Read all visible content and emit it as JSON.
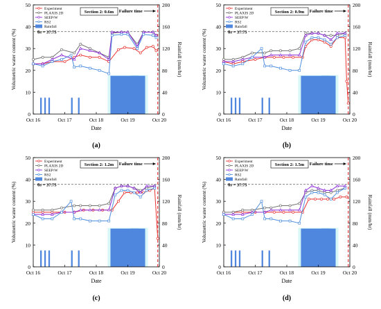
{
  "chart_data": [
    {
      "panel_label": "(a)",
      "type": "line",
      "section": "Section 2: 0.6m",
      "failure_label": "Failure time",
      "theta_label": "θs = 37.75",
      "theta_s": 37.75,
      "failure_day": 3.95,
      "xlabel": "Date",
      "ylabel": "Volumetric water content (%)",
      "ylabel2": "Rainfall (mm/hr)",
      "x_ticks": [
        "Oct 16",
        "Oct 17",
        "Oct 18",
        "Oct 19",
        "Oct 20"
      ],
      "y_ticks": [
        "0",
        "10",
        "20",
        "30",
        "40",
        "50"
      ],
      "y2_ticks": [
        "0",
        "40",
        "80",
        "120",
        "160",
        "200"
      ],
      "ylim": [
        0,
        50
      ],
      "y2lim": [
        0,
        200
      ],
      "grid": false,
      "legend": "top-left",
      "rainfall": [
        {
          "x": 0.22,
          "w": 0.05,
          "v": 30
        },
        {
          "x": 0.35,
          "w": 0.05,
          "v": 30
        },
        {
          "x": 0.48,
          "w": 0.05,
          "v": 30
        },
        {
          "x": 1.2,
          "w": 0.05,
          "v": 30
        },
        {
          "x": 1.42,
          "w": 0.05,
          "v": 30
        },
        {
          "x": 2.45,
          "w": 0.9,
          "v": 70
        },
        {
          "x": 3.1,
          "w": 0.45,
          "v": 70
        }
      ],
      "series": [
        {
          "name": "Experiment",
          "color": "#e8322f",
          "marker": "circle",
          "x": [
            0,
            0.3,
            0.6,
            1.0,
            1.3,
            1.5,
            1.8,
            2.1,
            2.4,
            2.7,
            2.9,
            3.2,
            3.4,
            3.6,
            3.8,
            3.9
          ],
          "y": [
            23,
            23,
            24,
            24,
            26,
            27,
            26,
            26,
            24,
            29.5,
            30.5,
            30,
            28,
            30.5,
            31,
            29
          ]
        },
        {
          "name": "PLAXIS 2D",
          "color": "#707070",
          "marker": "circle",
          "x": [
            0,
            0.3,
            0.6,
            0.9,
            1.3,
            1.5,
            1.8,
            2.1,
            2.4,
            2.5,
            2.8,
            3.0,
            3.3,
            3.5,
            3.8,
            3.9
          ],
          "y": [
            25,
            26,
            26,
            29.5,
            28,
            32,
            30,
            28,
            26,
            37,
            37.5,
            37.5,
            32,
            37.5,
            37.5,
            36
          ]
        },
        {
          "name": "SEEP/W",
          "color": "#8b2bd8",
          "marker": "triangle",
          "x": [
            0,
            0.3,
            0.6,
            0.9,
            1.3,
            1.5,
            1.8,
            2.1,
            2.4,
            2.5,
            2.8,
            3.0,
            3.3,
            3.5,
            3.8,
            3.9
          ],
          "y": [
            23,
            23,
            25,
            27,
            25,
            30,
            29,
            28,
            25,
            37.5,
            37.5,
            37.5,
            31,
            37.5,
            37.5,
            36
          ]
        },
        {
          "name": "RS2",
          "color": "#4f8ede",
          "marker": "square",
          "x": [
            0,
            0.3,
            0.6,
            0.9,
            1.2,
            1.3,
            1.5,
            1.8,
            2.1,
            2.4,
            2.5,
            2.8,
            3.0,
            3.3,
            3.5,
            3.8,
            3.9
          ],
          "y": [
            23,
            22,
            24,
            25,
            27,
            21.5,
            22,
            21,
            20,
            18.5,
            36,
            36.5,
            36.5,
            30,
            36.5,
            36,
            35
          ]
        }
      ]
    },
    {
      "panel_label": "(b)",
      "type": "line",
      "section": "Section 2: 0.9m",
      "failure_label": "Failure time",
      "theta_label": "θs = 37.75",
      "theta_s": 37.75,
      "failure_day": 3.95,
      "xlabel": "Date",
      "ylabel": "Volumetric water content (%)",
      "ylabel2": "Rainfall (mm/hr)",
      "x_ticks": [
        "Oct 16",
        "Oct 17",
        "Oct 18",
        "Oct 19",
        "Oct 20"
      ],
      "y_ticks": [
        "0",
        "10",
        "20",
        "30",
        "40",
        "50"
      ],
      "y2_ticks": [
        "0",
        "40",
        "80",
        "120",
        "160",
        "200"
      ],
      "ylim": [
        0,
        50
      ],
      "y2lim": [
        0,
        200
      ],
      "grid": false,
      "legend": "top-left",
      "rainfall": [
        {
          "x": 0.22,
          "w": 0.05,
          "v": 30
        },
        {
          "x": 0.35,
          "w": 0.05,
          "v": 30
        },
        {
          "x": 0.48,
          "w": 0.05,
          "v": 30
        },
        {
          "x": 1.2,
          "w": 0.05,
          "v": 30
        },
        {
          "x": 1.42,
          "w": 0.05,
          "v": 30
        },
        {
          "x": 2.45,
          "w": 0.9,
          "v": 70
        },
        {
          "x": 3.1,
          "w": 0.45,
          "v": 70
        }
      ],
      "series": [
        {
          "name": "Experiment",
          "color": "#e8322f",
          "marker": "circle",
          "x": [
            0,
            0.3,
            0.6,
            1.0,
            1.3,
            1.6,
            1.9,
            2.2,
            2.5,
            2.6,
            2.8,
            3.0,
            3.2,
            3.4,
            3.6,
            3.85,
            3.9,
            3.95
          ],
          "y": [
            24,
            23,
            24,
            25,
            26,
            26,
            26,
            26,
            26,
            31,
            34,
            34,
            33,
            31,
            35,
            35,
            15,
            5
          ]
        },
        {
          "name": "PLAXIS 2D",
          "color": "#707070",
          "marker": "circle",
          "x": [
            0,
            0.3,
            0.6,
            0.9,
            1.3,
            1.5,
            1.8,
            2.1,
            2.4,
            2.6,
            2.8,
            3.0,
            3.2,
            3.4,
            3.6,
            3.85
          ],
          "y": [
            25,
            25,
            26,
            28,
            28,
            29,
            29,
            29,
            30,
            37,
            37,
            37,
            36,
            36,
            36,
            37
          ]
        },
        {
          "name": "SEEP/W",
          "color": "#8b2bd8",
          "marker": "triangle",
          "x": [
            0,
            0.3,
            0.6,
            0.9,
            1.3,
            1.5,
            1.8,
            2.1,
            2.4,
            2.6,
            2.8,
            3.0,
            3.2,
            3.4,
            3.6,
            3.85
          ],
          "y": [
            24,
            24,
            25,
            26,
            26,
            27,
            27,
            27,
            27,
            36,
            37,
            37,
            36,
            34,
            37,
            37
          ]
        },
        {
          "name": "RS2",
          "color": "#4f8ede",
          "marker": "square",
          "x": [
            0,
            0.3,
            0.6,
            0.9,
            1.2,
            1.3,
            1.5,
            1.8,
            2.1,
            2.4,
            2.6,
            2.8,
            3.0,
            3.2,
            3.4,
            3.6,
            3.85
          ],
          "y": [
            23,
            22,
            23,
            26,
            30,
            22,
            22,
            21,
            20,
            20,
            33,
            35,
            35,
            34,
            32,
            35,
            36
          ]
        }
      ]
    },
    {
      "panel_label": "(c)",
      "type": "line",
      "section": "Section 2: 1.2m",
      "failure_label": "Failure time",
      "theta_label": "θs = 37.75",
      "theta_s": 37.75,
      "failure_day": 3.95,
      "xlabel": "Date",
      "ylabel": "Volumetric water content (%)",
      "ylabel2": "Rainfall (mm/hr)",
      "x_ticks": [
        "Oct 16",
        "Oct 17",
        "Oct 18",
        "Oct 19",
        "Oct 20"
      ],
      "y_ticks": [
        "0",
        "10",
        "20",
        "30",
        "40",
        "50"
      ],
      "y2_ticks": [
        "0",
        "40",
        "80",
        "120",
        "160",
        "200"
      ],
      "ylim": [
        0,
        50
      ],
      "y2lim": [
        0,
        200
      ],
      "grid": false,
      "legend": "top-left",
      "rainfall": [
        {
          "x": 0.22,
          "w": 0.05,
          "v": 30
        },
        {
          "x": 0.35,
          "w": 0.05,
          "v": 30
        },
        {
          "x": 0.48,
          "w": 0.05,
          "v": 30
        },
        {
          "x": 1.2,
          "w": 0.05,
          "v": 30
        },
        {
          "x": 1.42,
          "w": 0.05,
          "v": 30
        },
        {
          "x": 2.45,
          "w": 0.9,
          "v": 70
        },
        {
          "x": 3.1,
          "w": 0.45,
          "v": 70
        }
      ],
      "series": [
        {
          "name": "Experiment",
          "color": "#e8322f",
          "marker": "circle",
          "x": [
            0,
            0.3,
            0.6,
            1.0,
            1.3,
            1.6,
            1.9,
            2.2,
            2.5,
            2.7,
            2.9,
            3.1,
            3.3,
            3.5,
            3.7,
            3.85,
            3.95
          ],
          "y": [
            25,
            25,
            25,
            25,
            25,
            26,
            26,
            26,
            26,
            30,
            34,
            34,
            34,
            34,
            35,
            36,
            13
          ]
        },
        {
          "name": "PLAXIS 2D",
          "color": "#707070",
          "marker": "circle",
          "x": [
            0,
            0.3,
            0.6,
            0.9,
            1.3,
            1.5,
            1.8,
            2.1,
            2.4,
            2.6,
            2.8,
            3.0,
            3.2,
            3.4,
            3.6,
            3.85
          ],
          "y": [
            26,
            26,
            26,
            27,
            28,
            28,
            28,
            28,
            29,
            36,
            37,
            37,
            36,
            35,
            36,
            37
          ]
        },
        {
          "name": "SEEP/W",
          "color": "#8b2bd8",
          "marker": "triangle",
          "x": [
            0,
            0.3,
            0.6,
            0.9,
            1.3,
            1.5,
            1.8,
            2.1,
            2.4,
            2.6,
            2.8,
            3.0,
            3.2,
            3.4,
            3.6,
            3.85
          ],
          "y": [
            24,
            24,
            24,
            25,
            25,
            26,
            26,
            26,
            26,
            36,
            37,
            37,
            36,
            34,
            37,
            37
          ]
        },
        {
          "name": "RS2",
          "color": "#4f8ede",
          "marker": "square",
          "x": [
            0,
            0.3,
            0.6,
            0.9,
            1.2,
            1.3,
            1.5,
            1.8,
            2.1,
            2.4,
            2.6,
            2.8,
            3.0,
            3.2,
            3.4,
            3.6,
            3.85
          ],
          "y": [
            24,
            22,
            22,
            25,
            30,
            22,
            22,
            21,
            21,
            21,
            33,
            35,
            35,
            34,
            32,
            35,
            36
          ]
        }
      ]
    },
    {
      "panel_label": "(d)",
      "type": "line",
      "section": "Section 2: 1.5m",
      "failure_label": "Failure time",
      "theta_label": "θs = 37.75",
      "theta_s": 37.75,
      "failure_day": 3.95,
      "xlabel": "Date",
      "ylabel": "Volumetric water content (%)",
      "ylabel2": "Rainfall (mm/hr)",
      "x_ticks": [
        "Oct 16",
        "Oct 17",
        "Oct 18",
        "Oct 19",
        "Oct 20"
      ],
      "y_ticks": [
        "0",
        "10",
        "20",
        "30",
        "40",
        "50"
      ],
      "y2_ticks": [
        "0",
        "40",
        "80",
        "120",
        "160",
        "200"
      ],
      "ylim": [
        0,
        50
      ],
      "y2lim": [
        0,
        200
      ],
      "grid": false,
      "legend": "top-left",
      "rainfall": [
        {
          "x": 0.22,
          "w": 0.05,
          "v": 30
        },
        {
          "x": 0.35,
          "w": 0.05,
          "v": 30
        },
        {
          "x": 0.48,
          "w": 0.05,
          "v": 30
        },
        {
          "x": 1.2,
          "w": 0.05,
          "v": 30
        },
        {
          "x": 1.42,
          "w": 0.05,
          "v": 30
        },
        {
          "x": 2.45,
          "w": 0.9,
          "v": 70
        },
        {
          "x": 3.1,
          "w": 0.45,
          "v": 70
        }
      ],
      "series": [
        {
          "name": "Experiment",
          "color": "#e8322f",
          "marker": "circle",
          "x": [
            0,
            0.3,
            0.6,
            1.0,
            1.3,
            1.6,
            1.9,
            2.2,
            2.5,
            2.7,
            2.9,
            3.1,
            3.3,
            3.5,
            3.7,
            3.9
          ],
          "y": [
            25,
            25,
            25,
            25,
            25,
            25,
            25,
            25,
            25,
            31,
            31,
            31,
            31,
            31,
            32,
            32
          ]
        },
        {
          "name": "PLAXIS 2D",
          "color": "#707070",
          "marker": "circle",
          "x": [
            0,
            0.3,
            0.6,
            0.9,
            1.3,
            1.5,
            1.8,
            2.1,
            2.4,
            2.6,
            2.8,
            3.0,
            3.2,
            3.4,
            3.6,
            3.85
          ],
          "y": [
            25,
            25,
            26,
            26,
            27,
            27,
            28,
            28,
            29,
            34,
            35,
            35,
            34,
            34,
            35,
            36
          ]
        },
        {
          "name": "SEEP/W",
          "color": "#8b2bd8",
          "marker": "triangle",
          "x": [
            0,
            0.3,
            0.6,
            0.9,
            1.3,
            1.5,
            1.8,
            2.1,
            2.4,
            2.6,
            2.8,
            3.0,
            3.2,
            3.4,
            3.6,
            3.85
          ],
          "y": [
            24,
            24,
            24,
            25,
            25,
            26,
            26,
            26,
            26,
            35,
            37,
            36,
            35,
            35,
            37,
            37
          ]
        },
        {
          "name": "RS2",
          "color": "#4f8ede",
          "marker": "square",
          "x": [
            0,
            0.3,
            0.6,
            0.9,
            1.2,
            1.3,
            1.5,
            1.8,
            2.1,
            2.4,
            2.6,
            2.8,
            3.0,
            3.2,
            3.4,
            3.6,
            3.85
          ],
          "y": [
            24,
            22,
            22,
            24,
            30,
            22,
            22,
            21,
            21,
            20,
            32,
            34,
            34,
            33,
            31,
            34,
            36
          ]
        }
      ]
    }
  ],
  "legend_rainfall_label": "Rainfall",
  "colors": {
    "rain_bar": "#4f86de",
    "rain_highlight": "#d6f6f7",
    "theta_line": "#777777",
    "failure_line": "#e3282b",
    "axis": "#000000"
  }
}
